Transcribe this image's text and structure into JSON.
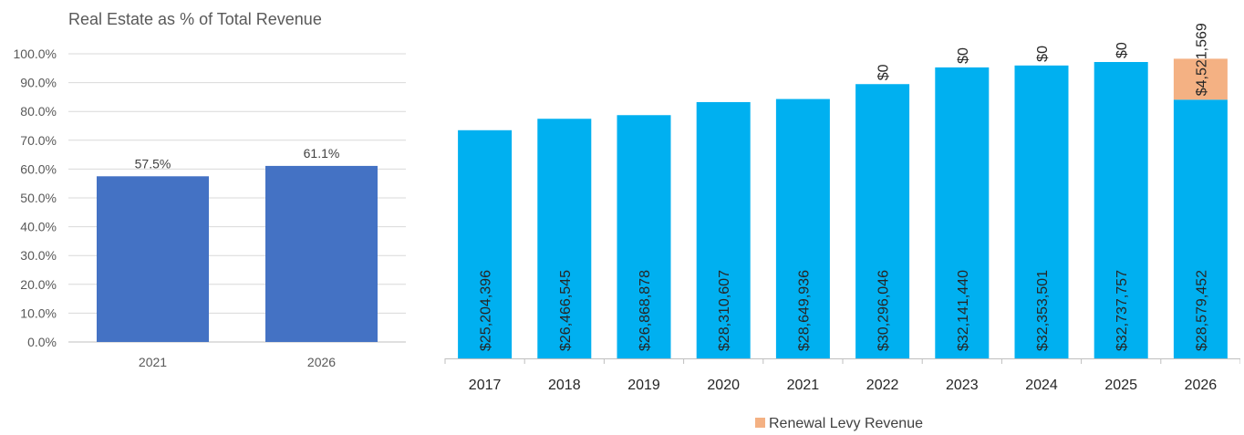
{
  "chart_data": [
    {
      "type": "bar",
      "title": "Real Estate as % of Total Revenue",
      "categories": [
        "2021",
        "2026"
      ],
      "values": [
        57.5,
        61.1
      ],
      "data_labels": [
        "57.5%",
        "61.1%"
      ],
      "ylim": [
        0,
        100
      ],
      "yticks": [
        0,
        10,
        20,
        30,
        40,
        50,
        60,
        70,
        80,
        90,
        100
      ],
      "ytick_labels": [
        "0.0%",
        "10.0%",
        "20.0%",
        "30.0%",
        "40.0%",
        "50.0%",
        "60.0%",
        "70.0%",
        "80.0%",
        "90.0%",
        "100.0%"
      ],
      "grid": true,
      "color": "#4472C4"
    },
    {
      "type": "bar",
      "stacked": true,
      "categories": [
        "2017",
        "2018",
        "2019",
        "2020",
        "2021",
        "2022",
        "2023",
        "2024",
        "2025",
        "2026"
      ],
      "series": [
        {
          "values": [
            25204396,
            26466545,
            26868878,
            28310607,
            28649936,
            30296046,
            32141440,
            32353501,
            32737757,
            28579452
          ],
          "labels": [
            "$25,204,396",
            "$26,466,545",
            "$26,868,878",
            "$28,310,607",
            "$28,649,936",
            "$30,296,046",
            "$32,141,440",
            "$32,353,501",
            "$32,737,757",
            "$28,579,452"
          ],
          "color": "#00B0F0"
        },
        {
          "name": "Renewal Levy Revenue",
          "values": [
            0,
            0,
            0,
            0,
            0,
            0,
            0,
            0,
            0,
            4521569
          ],
          "labels": [
            "",
            "",
            "",
            "",
            "",
            "$0",
            "$0",
            "$0",
            "$0",
            "$4,521,569"
          ],
          "color": "#F4B183"
        }
      ],
      "legend": "bottom",
      "grid": false
    }
  ]
}
